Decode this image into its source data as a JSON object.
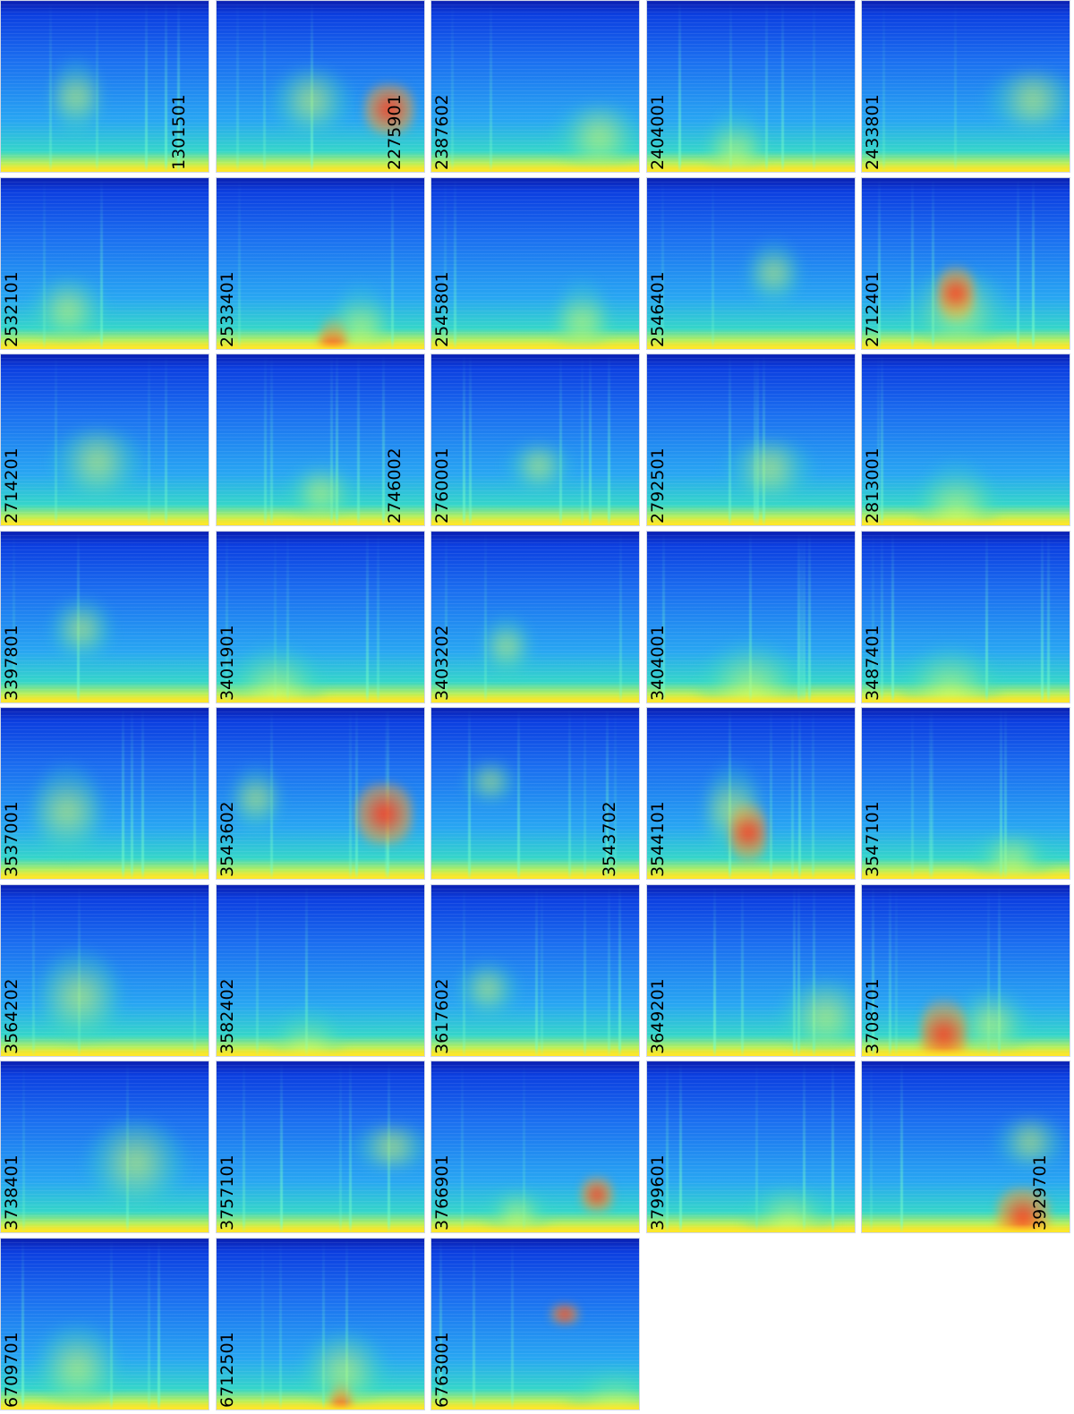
{
  "tiles": [
    {
      "id": "1301501",
      "label_side": "right"
    },
    {
      "id": "2275901",
      "label_side": "right"
    },
    {
      "id": "2387602",
      "label_side": "left"
    },
    {
      "id": "2404001",
      "label_side": "left"
    },
    {
      "id": "2433801",
      "label_side": "left"
    },
    {
      "id": "2532101",
      "label_side": "left"
    },
    {
      "id": "2533401",
      "label_side": "left"
    },
    {
      "id": "2545801",
      "label_side": "left"
    },
    {
      "id": "2546401",
      "label_side": "left"
    },
    {
      "id": "2712401",
      "label_side": "left"
    },
    {
      "id": "2714201",
      "label_side": "left"
    },
    {
      "id": "2746002",
      "label_side": "right"
    },
    {
      "id": "2760001",
      "label_side": "left"
    },
    {
      "id": "2792501",
      "label_side": "left"
    },
    {
      "id": "2813001",
      "label_side": "left"
    },
    {
      "id": "3397801",
      "label_side": "left"
    },
    {
      "id": "3401901",
      "label_side": "left"
    },
    {
      "id": "3403202",
      "label_side": "left"
    },
    {
      "id": "3404001",
      "label_side": "left"
    },
    {
      "id": "3487401",
      "label_side": "left"
    },
    {
      "id": "3537001",
      "label_side": "left"
    },
    {
      "id": "3543602",
      "label_side": "left"
    },
    {
      "id": "3543702",
      "label_side": "right"
    },
    {
      "id": "3544101",
      "label_side": "left"
    },
    {
      "id": "3547101",
      "label_side": "left"
    },
    {
      "id": "3564202",
      "label_side": "left"
    },
    {
      "id": "3582402",
      "label_side": "left"
    },
    {
      "id": "3617602",
      "label_side": "left"
    },
    {
      "id": "3649201",
      "label_side": "left"
    },
    {
      "id": "3708701",
      "label_side": "left"
    },
    {
      "id": "3738401",
      "label_side": "left"
    },
    {
      "id": "3757101",
      "label_side": "left"
    },
    {
      "id": "3766901",
      "label_side": "left"
    },
    {
      "id": "3799601",
      "label_side": "left"
    },
    {
      "id": "3929701",
      "label_side": "right"
    },
    {
      "id": "6709701",
      "label_side": "left"
    },
    {
      "id": "6712501",
      "label_side": "left"
    },
    {
      "id": "6763001",
      "label_side": "left"
    }
  ]
}
